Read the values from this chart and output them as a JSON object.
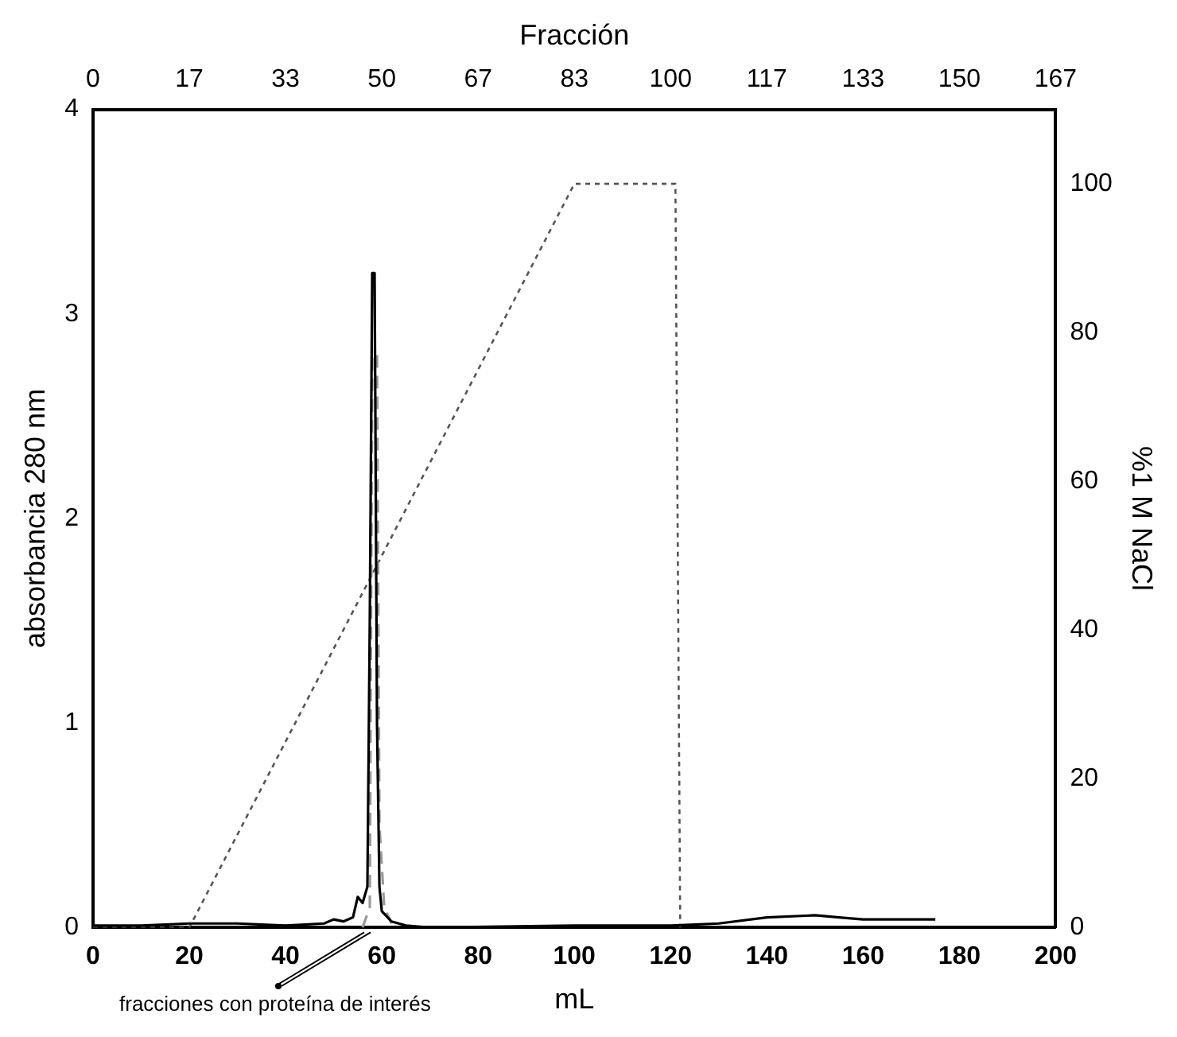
{
  "chart_data": {
    "type": "line",
    "xlabel": "mL",
    "ylabel": "absorbancia 280 nm",
    "y2label": "%1 M NaCl",
    "x2label": "Fracción",
    "xlim": [
      0,
      200
    ],
    "xticks": [
      0,
      20,
      40,
      60,
      80,
      100,
      120,
      140,
      160,
      180,
      200
    ],
    "x2lim": [
      0,
      166.67
    ],
    "x2ticks": [
      0,
      {
        "value": 16.67,
        "label": "17"
      },
      {
        "value": 33.33,
        "label": "33"
      },
      50,
      {
        "value": 66.67,
        "label": "67"
      },
      {
        "value": 83.33,
        "label": "83"
      },
      100,
      {
        "value": 116.67,
        "label": "117"
      },
      {
        "value": 133.33,
        "label": "133"
      },
      150,
      {
        "value": 166.67,
        "label": "167"
      }
    ],
    "ylim": [
      0,
      4
    ],
    "yticks": [
      0,
      1,
      2,
      3,
      4
    ],
    "y2lim": [
      0,
      110
    ],
    "y2ticks": [
      0,
      20,
      40,
      60,
      80,
      100
    ],
    "grid": false,
    "legend": false,
    "marker": "none",
    "series": [
      {
        "color": "#000000",
        "line_style": "solid",
        "x": [
          0,
          10,
          20,
          30,
          40,
          48,
          50,
          52,
          54,
          55,
          56,
          57,
          57.5,
          58,
          58.5,
          59,
          59.5,
          60,
          62,
          65,
          70,
          100,
          120,
          130,
          140,
          150,
          155,
          160,
          175
        ],
        "values": [
          0.01,
          0.01,
          0.02,
          0.02,
          0.01,
          0.02,
          0.04,
          0.03,
          0.05,
          0.15,
          0.12,
          0.2,
          1.5,
          3.2,
          3.2,
          1.0,
          0.2,
          0.08,
          0.03,
          0.01,
          0.0,
          0.01,
          0.01,
          0.02,
          0.05,
          0.06,
          0.05,
          0.04,
          0.04
        ]
      },
      {
        "color": "#999999",
        "line_style": "dashed",
        "x": [
          56,
          57.5,
          58,
          59,
          59.5,
          60.5,
          62
        ],
        "values": [
          0.0,
          0.1,
          2.8,
          2.8,
          0.5,
          0.1,
          0.02
        ]
      },
      {
        "color": "#555555",
        "line_style": "dotted",
        "axis": "y2",
        "x": [
          0,
          20,
          100,
          121,
          122
        ],
        "values": [
          0,
          0,
          100,
          100,
          0
        ]
      }
    ],
    "annotations": [
      {
        "text": "fracciones con proteína de interés",
        "x": 57,
        "y": 0
      }
    ]
  }
}
